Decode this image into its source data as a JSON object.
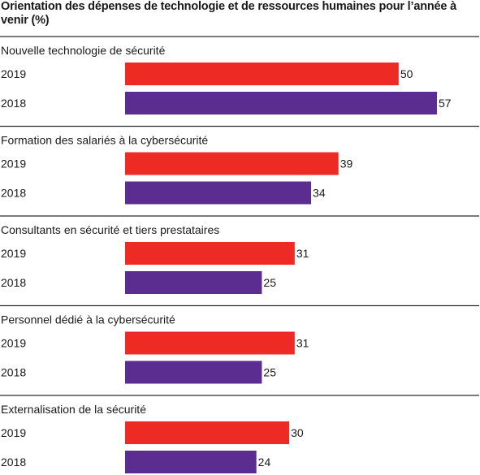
{
  "chart_data": {
    "type": "bar",
    "orientation": "horizontal",
    "title": "Orientation des dépenses de technologie et de ressources humaines pour l’année à venir (%)",
    "categories": [
      "Nouvelle technologie de sécurité",
      "Formation des salariés à la cybersécurité",
      "Consultants en sécurité et tiers prestataires",
      "Personnel dédié à la cybersécurité",
      "Externalisation de la sécurité"
    ],
    "series": [
      {
        "name": "2019",
        "color": "#ee2a24",
        "values": [
          50,
          39,
          31,
          31,
          30
        ]
      },
      {
        "name": "2018",
        "color": "#5c2d91",
        "values": [
          57,
          34,
          25,
          25,
          24
        ]
      }
    ],
    "xlim": [
      0,
      57
    ],
    "legend": "none",
    "grid": false
  }
}
